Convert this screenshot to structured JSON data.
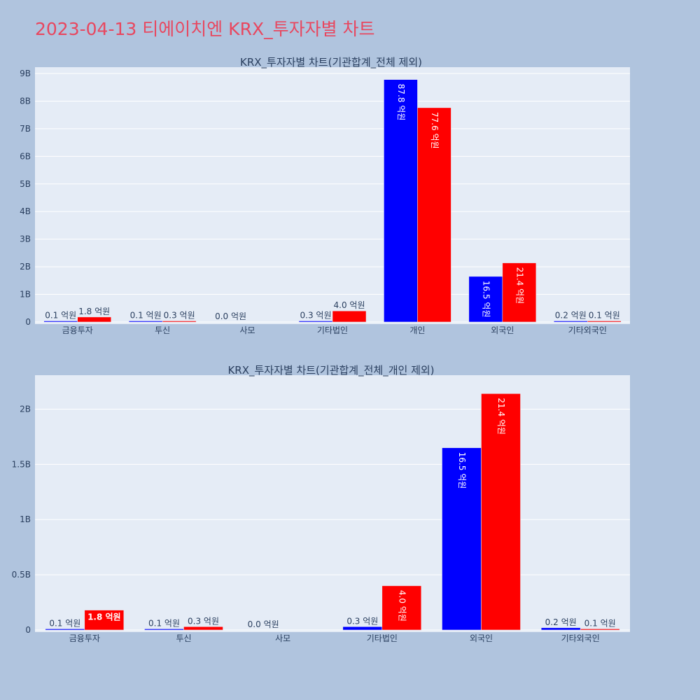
{
  "page_title": "2023-04-13 티에이치엔 KRX_투자자별 차트",
  "colors": {
    "buy": "#0000ff",
    "sell": "#ff0000",
    "plot_bg": "#e5ecf6",
    "page_bg": "#b0c4de",
    "title": "#e8475f"
  },
  "chart_data": [
    {
      "type": "bar",
      "title": "KRX_투자자별 차트(기관합계_전체 제외)",
      "categories": [
        "금융투자",
        "투신",
        "사모",
        "기타법인",
        "개인",
        "외국인",
        "기타외국인"
      ],
      "series": [
        {
          "values": [
            10000000,
            10000000,
            0,
            30000000,
            8780000000,
            1650000000,
            20000000
          ],
          "labels": [
            "0.1 억원",
            "0.1 억원",
            "0.0 억원",
            "0.3 억원",
            "87.8 억원",
            "16.5 억원",
            "0.2 억원"
          ]
        },
        {
          "values": [
            180000000,
            30000000,
            0,
            400000000,
            7760000000,
            2140000000,
            10000000
          ],
          "labels": [
            "1.8 억원",
            "0.3 억원",
            "",
            "4.0 억원",
            "77.6 억원",
            "21.4 억원",
            "0.1 억원"
          ]
        }
      ],
      "ylim": [
        0,
        9000000000
      ],
      "yticks": [
        {
          "value": 0,
          "label": "0"
        },
        {
          "value": 1000000000,
          "label": "1B"
        },
        {
          "value": 2000000000,
          "label": "2B"
        },
        {
          "value": 3000000000,
          "label": "3B"
        },
        {
          "value": 4000000000,
          "label": "4B"
        },
        {
          "value": 5000000000,
          "label": "5B"
        },
        {
          "value": 6000000000,
          "label": "6B"
        },
        {
          "value": 7000000000,
          "label": "7B"
        },
        {
          "value": 8000000000,
          "label": "8B"
        },
        {
          "value": 9000000000,
          "label": "9B"
        }
      ],
      "grid": true,
      "legend": "none"
    },
    {
      "type": "bar",
      "title": "KRX_투자자별 차트(기관합계_전체_개인 제외)",
      "categories": [
        "금융투자",
        "투신",
        "사모",
        "기타법인",
        "외국인",
        "기타외국인"
      ],
      "series": [
        {
          "values": [
            10000000,
            10000000,
            0,
            30000000,
            1650000000,
            20000000
          ],
          "labels": [
            "0.1 억원",
            "0.1 억원",
            "0.0 억원",
            "0.3 억원",
            "16.5 억원",
            "0.2 억원"
          ]
        },
        {
          "values": [
            180000000,
            30000000,
            0,
            400000000,
            2140000000,
            10000000
          ],
          "labels": [
            "1.8 억원",
            "0.3 억원",
            "",
            "4.0 억원",
            "21.4 억원",
            "0.1 억원"
          ]
        }
      ],
      "ylim": [
        0,
        2250000000
      ],
      "yticks": [
        {
          "value": 0,
          "label": "0"
        },
        {
          "value": 500000000,
          "label": "0.5B"
        },
        {
          "value": 1000000000,
          "label": "1B"
        },
        {
          "value": 1500000000,
          "label": "1.5B"
        },
        {
          "value": 2000000000,
          "label": "2B"
        }
      ],
      "grid": true,
      "legend": "none"
    }
  ]
}
